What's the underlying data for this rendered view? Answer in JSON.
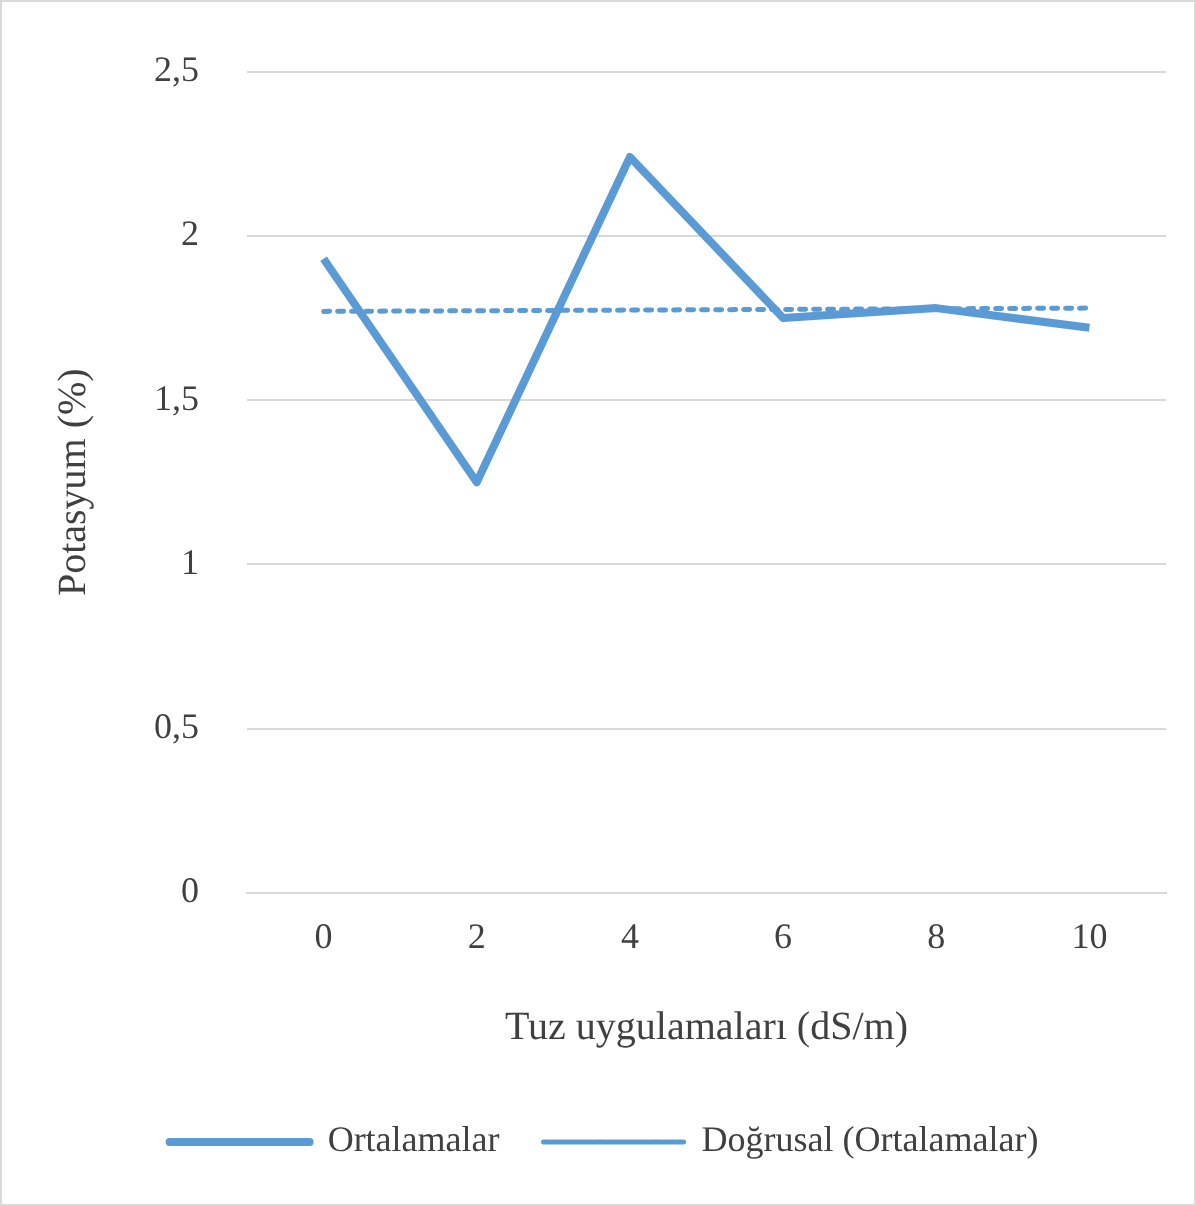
{
  "chart_data": {
    "type": "line",
    "xlabel": "Tuz uygulamaları (dS/m)",
    "ylabel": "Potasyum (%)",
    "categories": [
      "0",
      "2",
      "4",
      "6",
      "8",
      "10"
    ],
    "series": [
      {
        "name": "Ortalamalar",
        "color": "#5b9bd5",
        "values": [
          1.93,
          1.25,
          2.24,
          1.75,
          1.78,
          1.72
        ],
        "line_style": "solid"
      },
      {
        "name": "Doğrusal (Ortalamalar)",
        "color": "#5b9bd5",
        "values": [
          1.77,
          1.772,
          1.774,
          1.776,
          1.778,
          1.78
        ],
        "line_style": "dotted"
      }
    ],
    "ylim": [
      0,
      2.5
    ],
    "yticks": [
      {
        "value": 0,
        "label": "0"
      },
      {
        "value": 0.5,
        "label": "0,5"
      },
      {
        "value": 1,
        "label": "1"
      },
      {
        "value": 1.5,
        "label": "1,5"
      },
      {
        "value": 2,
        "label": "2"
      },
      {
        "value": 2.5,
        "label": "2,5"
      }
    ],
    "grid": "y",
    "legend": "bottom",
    "marker": "none"
  }
}
